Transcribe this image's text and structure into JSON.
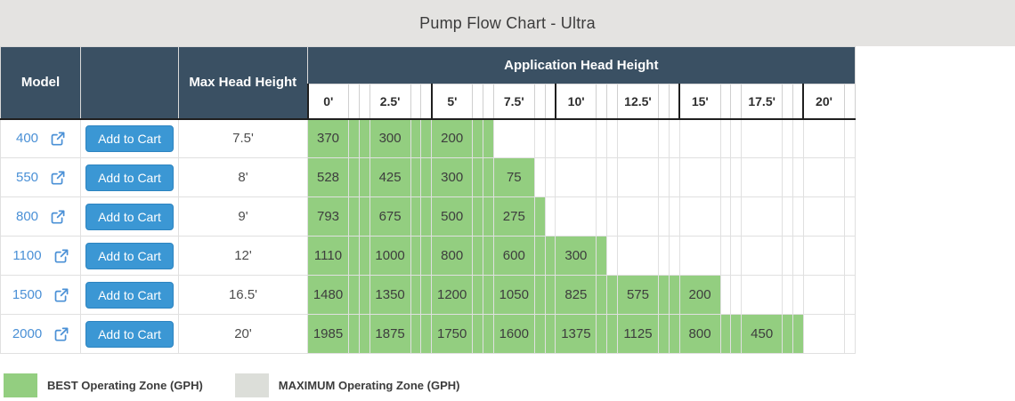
{
  "title": "Pump Flow Chart - Ultra",
  "colors": {
    "titlebar_bg": "#e4e3e1",
    "header_bg": "#3a5063",
    "best_green": "#93ce80",
    "maximum_gray": "#dcded9",
    "button_bg": "#3b97d4",
    "link_blue": "#4a90d6"
  },
  "table": {
    "model_header": "Model",
    "max_head_header": "Max Head Height",
    "application_header": "Application Head Height",
    "head_heights": [
      "0'",
      "2.5'",
      "5'",
      "7.5'",
      "10'",
      "12.5'",
      "15'",
      "17.5'",
      "20'"
    ],
    "add_to_cart_label": "Add to Cart",
    "rows": [
      {
        "model": "400",
        "max_head": "7.5'",
        "flows": [
          370,
          300,
          200
        ],
        "green_cells": 9
      },
      {
        "model": "550",
        "max_head": "8'",
        "flows": [
          528,
          425,
          300,
          75
        ],
        "green_cells": 10
      },
      {
        "model": "800",
        "max_head": "9'",
        "flows": [
          793,
          675,
          500,
          275
        ],
        "green_cells": 11
      },
      {
        "model": "1100",
        "max_head": "12'",
        "flows": [
          1110,
          1000,
          800,
          600,
          300
        ],
        "green_cells": 14
      },
      {
        "model": "1500",
        "max_head": "16.5'",
        "flows": [
          1480,
          1350,
          1200,
          1050,
          825,
          575,
          200
        ],
        "green_cells": 19
      },
      {
        "model": "2000",
        "max_head": "20'",
        "flows": [
          1985,
          1875,
          1750,
          1600,
          1375,
          1125,
          800,
          450
        ],
        "green_cells": 24
      }
    ]
  },
  "legend": {
    "items": [
      {
        "color": "#93ce80",
        "label": "BEST Operating Zone (GPH)"
      },
      {
        "color": "#dcded9",
        "label": "MAXIMUM Operating Zone (GPH)"
      }
    ]
  }
}
